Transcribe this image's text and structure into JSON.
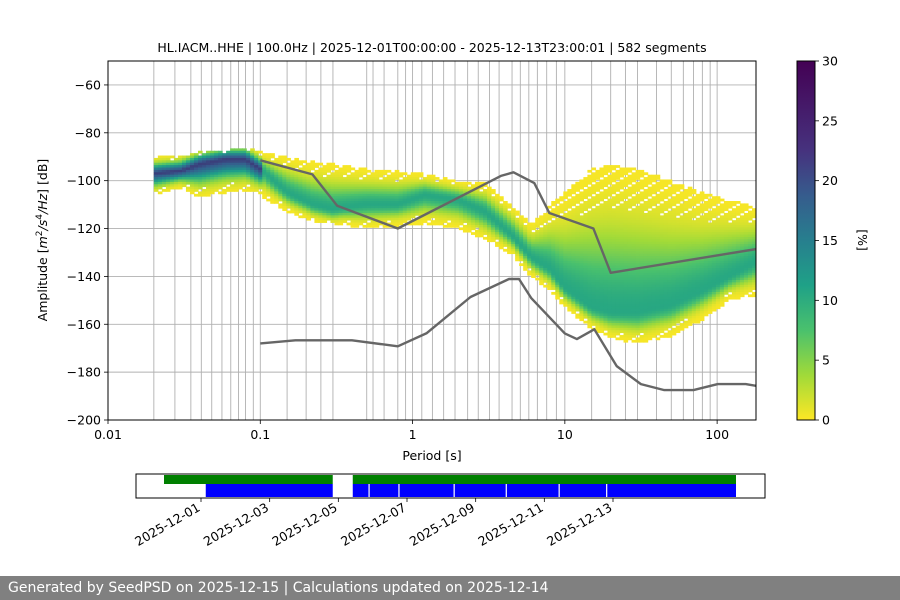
{
  "chart_data": {
    "type": "heatmap",
    "title": "HL.IACM..HHE | 100.0Hz | 2025-12-01T00:00:00 - 2025-12-13T23:00:01 | 582 segments",
    "xlabel": "Period [s]",
    "ylabel_parts": [
      "Amplitude [",
      "m",
      "2",
      "/s",
      "4",
      "/Hz",
      "] [dB]"
    ],
    "x_scale": "log",
    "xlim": [
      0.01,
      180
    ],
    "ylim": [
      -200,
      -50
    ],
    "x_ticks": [
      {
        "value": 0.01,
        "label": "0.01"
      },
      {
        "value": 0.1,
        "label": "0.1"
      },
      {
        "value": 1,
        "label": "1"
      },
      {
        "value": 10,
        "label": "10"
      },
      {
        "value": 100,
        "label": "100"
      }
    ],
    "y_ticks": [
      {
        "value": -60,
        "label": "−60"
      },
      {
        "value": -80,
        "label": "−80"
      },
      {
        "value": -100,
        "label": "−100"
      },
      {
        "value": -120,
        "label": "−120"
      },
      {
        "value": -140,
        "label": "−140"
      },
      {
        "value": -160,
        "label": "−160"
      },
      {
        "value": -180,
        "label": "−180"
      },
      {
        "value": -200,
        "label": "−200"
      }
    ],
    "vertical_gridlines_period": [
      0.02,
      0.0275,
      0.035,
      0.041,
      0.048,
      0.056,
      0.064,
      0.072,
      0.08,
      0.09,
      0.1,
      0.15,
      0.2,
      0.25,
      0.3,
      0.5,
      0.55,
      0.65,
      0.8,
      0.9,
      1,
      1.15,
      1.35,
      1.6,
      1.9,
      2.3,
      2.7,
      3.2,
      3.7,
      4.5,
      5.1,
      5.8,
      6.6,
      7.6,
      8.8,
      10,
      15,
      20,
      25,
      30,
      40,
      50,
      60,
      70,
      80,
      90,
      100
    ],
    "colorbar": {
      "label": "[%]",
      "range": [
        0,
        30
      ],
      "ticks": [
        {
          "value": 0,
          "label": "0"
        },
        {
          "value": 5,
          "label": "5"
        },
        {
          "value": 10,
          "label": "10"
        },
        {
          "value": 15,
          "label": "15"
        },
        {
          "value": 20,
          "label": "20"
        },
        {
          "value": 25,
          "label": "25"
        },
        {
          "value": 30,
          "label": "30"
        }
      ],
      "colormap": "viridis_r"
    },
    "psd_spread": [
      {
        "period": 0.02,
        "center": -97,
        "low": -106,
        "high": -90
      },
      {
        "period": 0.03,
        "center": -96,
        "low": -103,
        "high": -90
      },
      {
        "period": 0.04,
        "center": -93,
        "low": -107,
        "high": -88
      },
      {
        "period": 0.06,
        "center": -91,
        "low": -105,
        "high": -87
      },
      {
        "period": 0.08,
        "center": -91,
        "low": -104,
        "high": -86
      },
      {
        "period": 0.1,
        "center": -95,
        "low": -106,
        "high": -88
      },
      {
        "period": 0.15,
        "center": -105,
        "low": -113,
        "high": -90
      },
      {
        "period": 0.22,
        "center": -110,
        "low": -117,
        "high": -92
      },
      {
        "period": 0.3,
        "center": -112,
        "low": -118,
        "high": -93
      },
      {
        "period": 0.5,
        "center": -110,
        "low": -120,
        "high": -95
      },
      {
        "period": 0.8,
        "center": -110,
        "low": -119,
        "high": -96
      },
      {
        "period": 1.2,
        "center": -106,
        "low": -118,
        "high": -97
      },
      {
        "period": 2,
        "center": -108,
        "low": -120,
        "high": -100
      },
      {
        "period": 3,
        "center": -113,
        "low": -125,
        "high": -101
      },
      {
        "period": 4.5,
        "center": -123,
        "low": -131,
        "high": -110
      },
      {
        "period": 6,
        "center": -132,
        "low": -140,
        "high": -118
      },
      {
        "period": 8,
        "center": -137,
        "low": -146,
        "high": -110
      },
      {
        "period": 10,
        "center": -145,
        "low": -153,
        "high": -105
      },
      {
        "period": 15,
        "center": -153,
        "low": -162,
        "high": -95
      },
      {
        "period": 20,
        "center": -155,
        "low": -166,
        "high": -93
      },
      {
        "period": 30,
        "center": -155,
        "low": -168,
        "high": -95
      },
      {
        "period": 50,
        "center": -152,
        "low": -165,
        "high": -100
      },
      {
        "period": 80,
        "center": -146,
        "low": -158,
        "high": -105
      },
      {
        "period": 120,
        "center": -140,
        "low": -150,
        "high": -108
      },
      {
        "period": 180,
        "center": -134,
        "low": -148,
        "high": -111
      }
    ],
    "nhnm": {
      "name": "NHNM",
      "points": [
        [
          0.1,
          -91.5
        ],
        [
          0.22,
          -97.4
        ],
        [
          0.32,
          -110.5
        ],
        [
          0.8,
          -120
        ],
        [
          3.8,
          -98
        ],
        [
          4.6,
          -96.5
        ],
        [
          6.3,
          -101
        ],
        [
          7.9,
          -113.5
        ],
        [
          15.4,
          -120
        ],
        [
          20,
          -138.5
        ],
        [
          180,
          -128.6
        ]
      ]
    },
    "nlnm": {
      "name": "NLNM",
      "points": [
        [
          0.1,
          -168
        ],
        [
          0.17,
          -166.7
        ],
        [
          0.4,
          -166.7
        ],
        [
          0.8,
          -169.2
        ],
        [
          1.24,
          -163.7
        ],
        [
          2.4,
          -148.6
        ],
        [
          4.3,
          -141.1
        ],
        [
          5,
          -141.1
        ],
        [
          6,
          -149
        ],
        [
          10,
          -163.8
        ],
        [
          12,
          -166.2
        ],
        [
          15.6,
          -162.1
        ],
        [
          21.9,
          -177.5
        ],
        [
          31.6,
          -185
        ],
        [
          45,
          -187.5
        ],
        [
          70,
          -187.5
        ],
        [
          101,
          -185
        ],
        [
          154,
          -185
        ],
        [
          180,
          -185.7
        ]
      ]
    },
    "data_availability": {
      "date_ticks": [
        "2025-12-01",
        "2025-12-03",
        "2025-12-05",
        "2025-12-07",
        "2025-12-09",
        "2025-12-11",
        "2025-12-13"
      ],
      "green_segments": [
        [
          0.0,
          0.295
        ],
        [
          0.33,
          1.0
        ]
      ],
      "blue_segments": [
        [
          0.073,
          0.295
        ],
        [
          0.33,
          1.0
        ]
      ],
      "blue_gaps": [
        0.041,
        0.119,
        0.263,
        0.399,
        0.537,
        0.661
      ]
    }
  },
  "footer": {
    "text": "Generated by SeedPSD on 2025-12-15 | Calculations updated on 2025-12-14"
  }
}
